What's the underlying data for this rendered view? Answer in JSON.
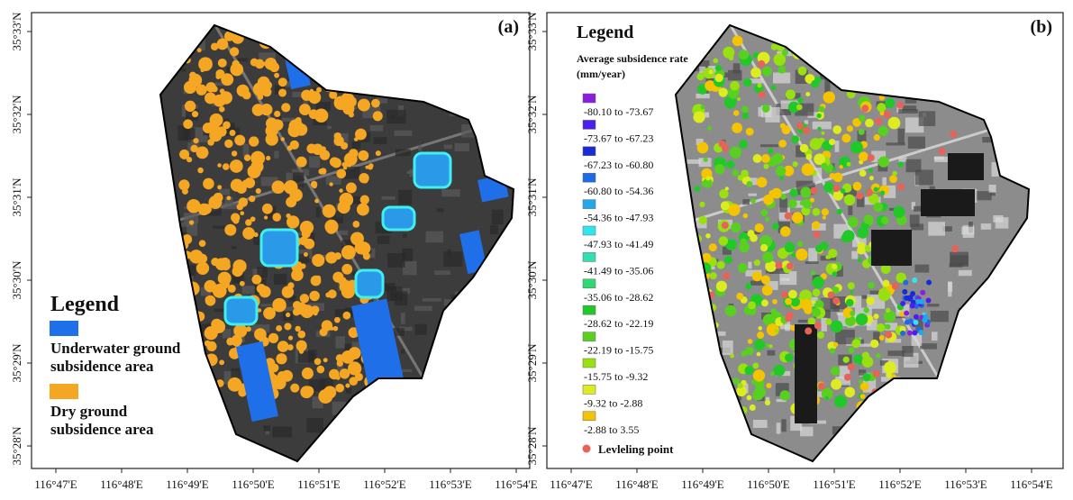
{
  "x_ticks": [
    "116°47'E",
    "116°48'E",
    "116°49'E",
    "116°50'E",
    "116°51'E",
    "116°52'E",
    "116°53'E",
    "116°54'E"
  ],
  "y_ticks": [
    "35°33'N",
    "35°32'N",
    "35°31'N",
    "35°30'N",
    "35°29'N",
    "35°28'N"
  ],
  "panels": [
    {
      "label": "(a)",
      "legend": {
        "title": "Legend",
        "items": [
          {
            "lines": [
              "Underwater ground",
              "subsidence area"
            ],
            "color": "#1f6fe8"
          },
          {
            "lines": [
              "Dry ground",
              "subsidence area"
            ],
            "color": "#f5a623"
          }
        ]
      }
    },
    {
      "label": "(b)",
      "legend": {
        "title": "Legend",
        "subtitle": [
          "Average subsidence rate",
          "(mm/year)"
        ],
        "items": [
          {
            "label": "-80.10 to -73.67",
            "color": "#8a1ee0"
          },
          {
            "label": "-73.67 to -67.23",
            "color": "#4a1ef0"
          },
          {
            "label": "-67.23 to -60.80",
            "color": "#1a2ad8"
          },
          {
            "label": "-60.80 to -54.36",
            "color": "#1e6ae6"
          },
          {
            "label": "-54.36 to -47.93",
            "color": "#20a8e8"
          },
          {
            "label": "-47.93 to -41.49",
            "color": "#30e6ee"
          },
          {
            "label": "-41.49 to -35.06",
            "color": "#30e0b0"
          },
          {
            "label": "-35.06 to -28.62",
            "color": "#30d874"
          },
          {
            "label": "-28.62 to -22.19",
            "color": "#20c828"
          },
          {
            "label": "-22.19 to -15.75",
            "color": "#58d020"
          },
          {
            "label": "-15.75 to -9.32",
            "color": "#98e010"
          },
          {
            "label": "-9.32 to -2.88",
            "color": "#dcec20"
          },
          {
            "label": "-2.88 to 3.55",
            "color": "#f4c400"
          }
        ],
        "point": {
          "label": "Levleling point",
          "color": "#e8625a"
        }
      }
    }
  ]
}
